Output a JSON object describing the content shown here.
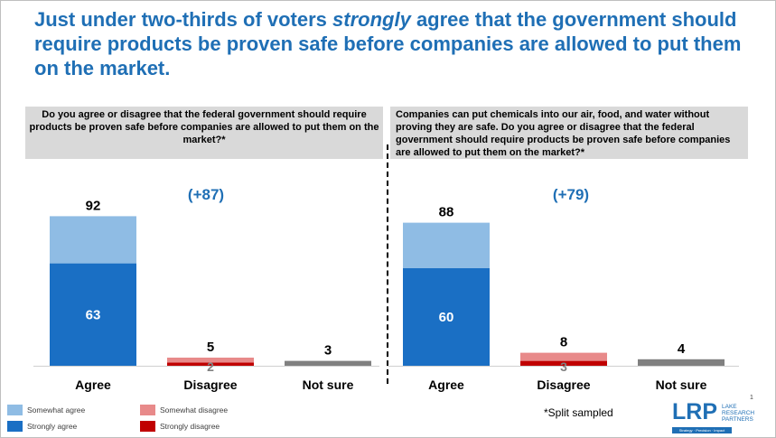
{
  "title": {
    "before": "Just under two-thirds of voters ",
    "emph": "strongly",
    "after": " agree that the government should require products be proven safe before companies are allowed to put them on the market."
  },
  "questions": {
    "left": "Do you agree or disagree that the federal government should require products be proven safe before companies are allowed to put them on the market?*",
    "right": "Companies can put chemicals into our air, food, and water without proving they are safe. Do you agree or disagree that the federal government should require products be proven safe before companies are allowed to put them on the market?*"
  },
  "legend": {
    "somewhat_agree": "Somewhat agree",
    "strongly_agree": "Strongly agree",
    "somewhat_disagree": "Somewhat disagree",
    "strongly_disagree": "Strongly disagree"
  },
  "footnote": "*Split sampled",
  "logo": {
    "mark": "LRP",
    "line1": "LAKE",
    "line2": "RESEARCH",
    "line3": "PARTNERS",
    "tagline": "Strategy · Precision · Impact"
  },
  "page_number": "1",
  "colors": {
    "title": "#1f6fb5",
    "somewhat_agree": "#8fbce4",
    "strongly_agree": "#1a6fc4",
    "somewhat_disagree": "#e88a8a",
    "strongly_disagree": "#c00000",
    "not_sure": "#808080"
  },
  "chart_data": [
    {
      "type": "bar",
      "stacked": true,
      "categories": [
        "Agree",
        "Disagree",
        "Not sure"
      ],
      "net_label": "(+87)",
      "totals": [
        92,
        5,
        3
      ],
      "series": [
        {
          "name": "Strongly agree",
          "values": [
            63,
            0,
            0
          ]
        },
        {
          "name": "Somewhat agree",
          "values": [
            29,
            0,
            0
          ]
        },
        {
          "name": "Strongly disagree",
          "values": [
            0,
            2,
            0
          ]
        },
        {
          "name": "Somewhat disagree",
          "values": [
            0,
            3,
            0
          ]
        },
        {
          "name": "Not sure",
          "values": [
            0,
            0,
            3
          ]
        }
      ],
      "inner_labels": [
        "63",
        "2",
        ""
      ]
    },
    {
      "type": "bar",
      "stacked": true,
      "categories": [
        "Agree",
        "Disagree",
        "Not sure"
      ],
      "net_label": "(+79)",
      "totals": [
        88,
        8,
        4
      ],
      "series": [
        {
          "name": "Strongly agree",
          "values": [
            60,
            0,
            0
          ]
        },
        {
          "name": "Somewhat agree",
          "values": [
            28,
            0,
            0
          ]
        },
        {
          "name": "Strongly disagree",
          "values": [
            0,
            3,
            0
          ]
        },
        {
          "name": "Somewhat disagree",
          "values": [
            0,
            5,
            0
          ]
        },
        {
          "name": "Not sure",
          "values": [
            0,
            0,
            4
          ]
        }
      ],
      "inner_labels": [
        "60",
        "3",
        ""
      ]
    }
  ]
}
